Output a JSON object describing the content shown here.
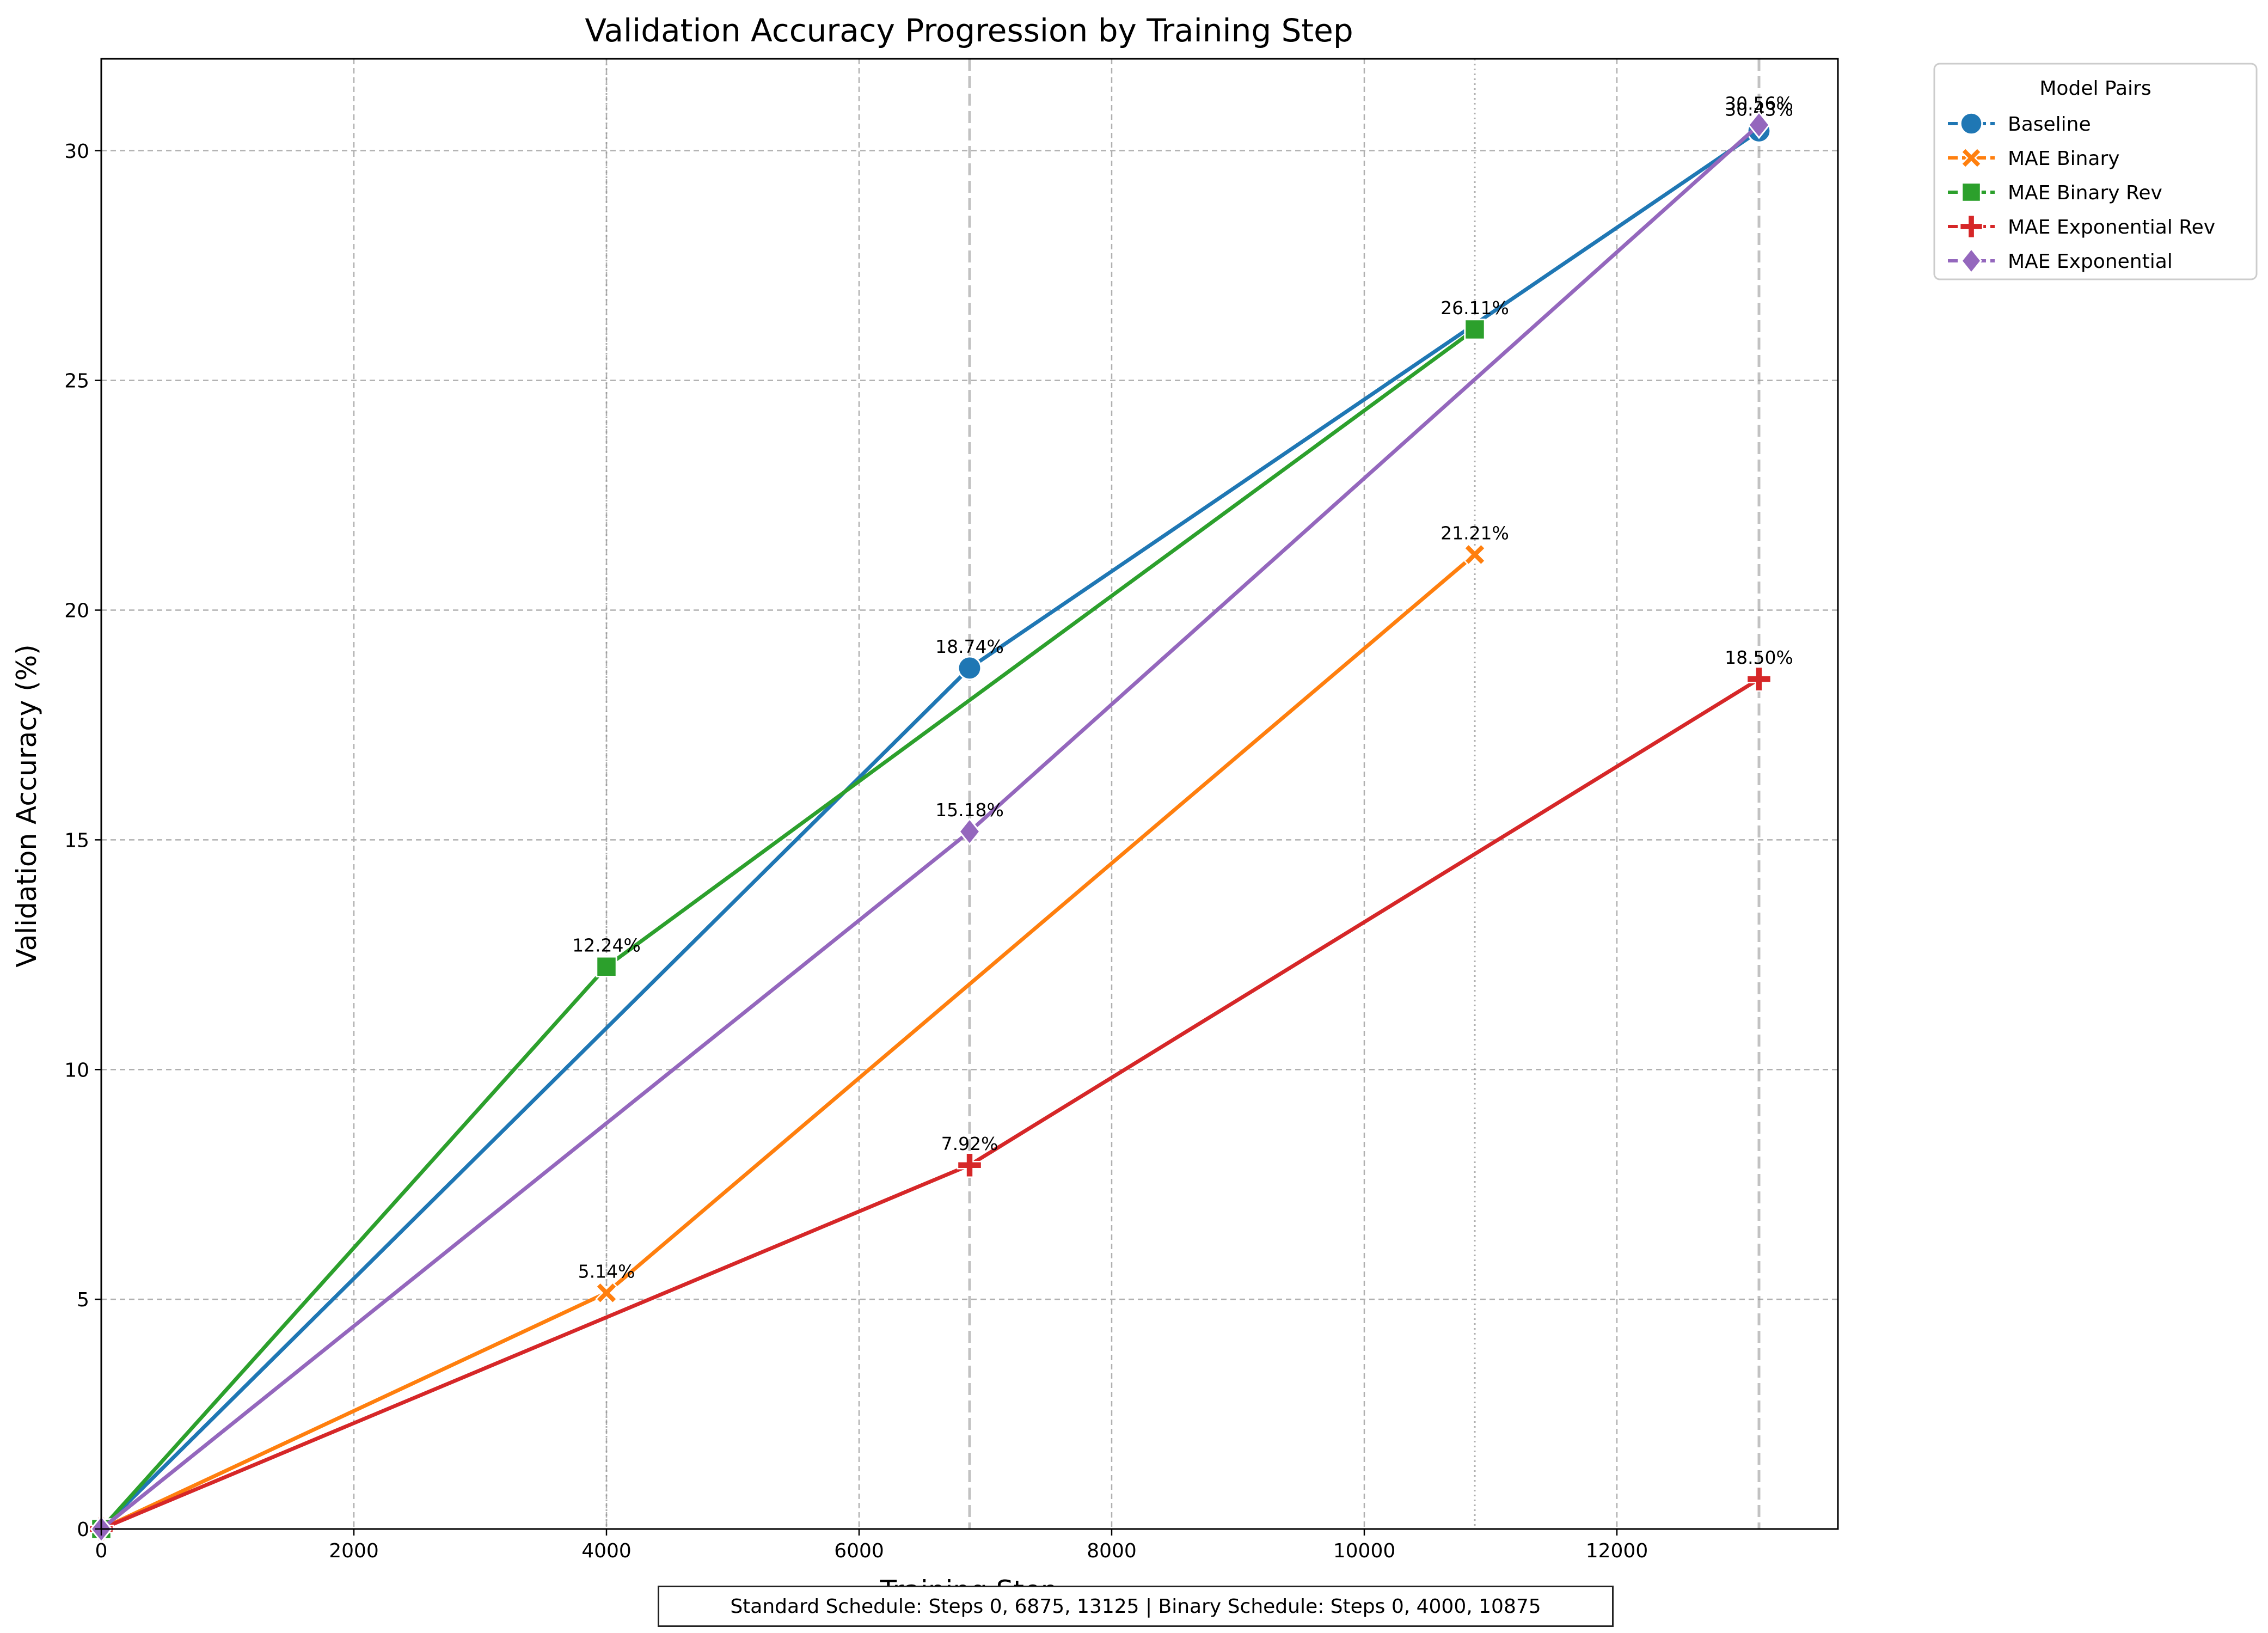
{
  "chart_data": {
    "type": "line",
    "title": "Validation Accuracy Progression by Training Step",
    "xlabel": "Training Step",
    "ylabel": "Validation Accuracy (%)",
    "xlim": [
      0,
      13750
    ],
    "ylim": [
      0,
      32
    ],
    "xticks": [
      0,
      2000,
      4000,
      6000,
      8000,
      10000,
      12000
    ],
    "yticks": [
      0,
      5,
      10,
      15,
      20,
      25,
      30
    ],
    "grid": true,
    "vlines_dotted": [
      4000,
      10875
    ],
    "vlines_dashed": [
      6875,
      13125
    ],
    "legend": {
      "title": "Model Pairs",
      "placement": "outside-top-right"
    },
    "series": [
      {
        "name": "Baseline",
        "color": "#1f77b4",
        "marker": "circle",
        "x": [
          0,
          6875,
          13125
        ],
        "y": [
          0,
          18.74,
          30.43
        ],
        "labels": [
          "",
          "18.74%",
          "30.43%"
        ]
      },
      {
        "name": "MAE Binary",
        "color": "#ff7f0e",
        "marker": "x",
        "x": [
          0,
          4000,
          10875
        ],
        "y": [
          0,
          5.14,
          21.21
        ],
        "labels": [
          "",
          "5.14%",
          "21.21%"
        ]
      },
      {
        "name": "MAE Binary Rev",
        "color": "#2ca02c",
        "marker": "square",
        "x": [
          0,
          4000,
          10875
        ],
        "y": [
          0,
          12.24,
          26.11
        ],
        "labels": [
          "",
          "12.24%",
          "26.11%"
        ]
      },
      {
        "name": "MAE Exponential Rev",
        "color": "#d62728",
        "marker": "plus",
        "x": [
          0,
          6875,
          13125
        ],
        "y": [
          0,
          7.92,
          18.5
        ],
        "labels": [
          "",
          "7.92%",
          "18.50%"
        ]
      },
      {
        "name": "MAE Exponential",
        "color": "#9467bd",
        "marker": "diamond",
        "x": [
          0,
          6875,
          13125
        ],
        "y": [
          0,
          15.18,
          30.56
        ],
        "labels": [
          "",
          "15.18%",
          "30.56%"
        ]
      }
    ]
  },
  "footnote": "Standard Schedule: Steps 0, 6875, 13125 | Binary Schedule: Steps 0, 4000, 10875"
}
